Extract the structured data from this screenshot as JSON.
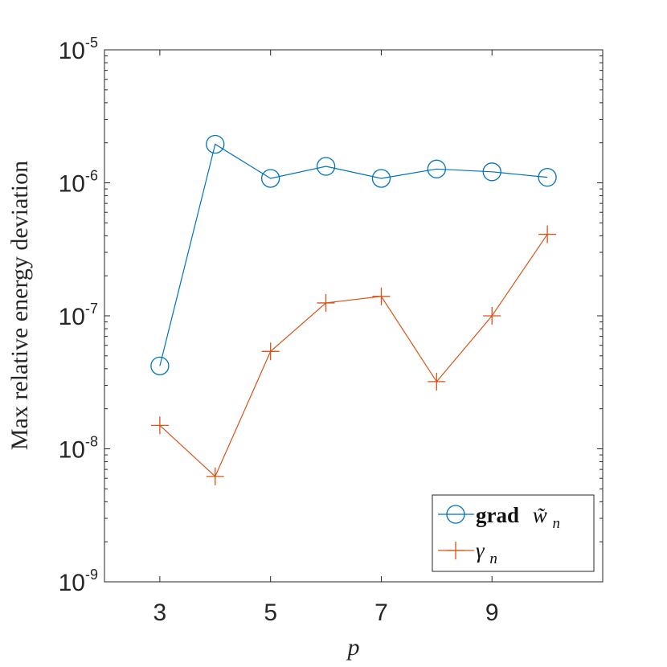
{
  "chart_data": {
    "type": "line",
    "xlabel": "p",
    "ylabel": "Max relative energy deviation",
    "x": [
      3,
      4,
      5,
      6,
      7,
      8,
      9,
      10
    ],
    "xlim": [
      2,
      11
    ],
    "ylim": [
      1e-09,
      1e-05
    ],
    "yscale": "log",
    "xticks": [
      3,
      5,
      7,
      9
    ],
    "yticks": [
      {
        "value": 1e-09,
        "base": "10",
        "exp": "-9"
      },
      {
        "value": 1e-08,
        "base": "10",
        "exp": "-8"
      },
      {
        "value": 1e-07,
        "base": "10",
        "exp": "-7"
      },
      {
        "value": 1e-06,
        "base": "10",
        "exp": "-6"
      },
      {
        "value": 1e-05,
        "base": "10",
        "exp": "-5"
      }
    ],
    "grid": false,
    "legend_position": "bottom-right",
    "series": [
      {
        "name": "grad w̃n",
        "legend_bold": "grad",
        "legend_rest": "w̃",
        "legend_sub": "n",
        "marker": "circle",
        "color": "#0072BD",
        "values": [
          4.2e-08,
          1.95e-06,
          1.08e-06,
          1.33e-06,
          1.08e-06,
          1.27e-06,
          1.21e-06,
          1.1e-06
        ]
      },
      {
        "name": "γn",
        "legend_rest": "γ",
        "legend_sub": "n",
        "marker": "plus",
        "color": "#D95319",
        "values": [
          1.5e-08,
          6.2e-09,
          5.4e-08,
          1.25e-07,
          1.4e-07,
          3.2e-08,
          1e-07,
          4.1e-07
        ]
      }
    ]
  }
}
